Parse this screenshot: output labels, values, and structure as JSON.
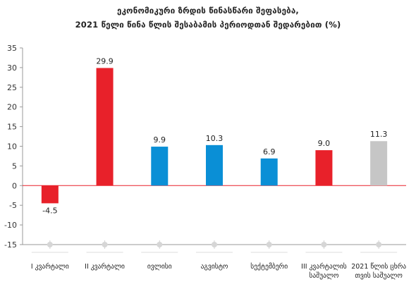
{
  "title_line1": "ეკონომიკური ზრდის წინასწარი შეფასება,",
  "title_line2": "2021 წელი წინა წლის შესაბამის პერიოდთან შედარებით (%)",
  "chart_data": {
    "type": "bar",
    "categories": [
      [
        "I კვარტალი"
      ],
      [
        "II კვარტალი"
      ],
      [
        "ივლისი"
      ],
      [
        "აგვისტო"
      ],
      [
        "სექტემბერი"
      ],
      [
        "III კვარტალის",
        "საშუალო"
      ],
      [
        "2021 წლის ცხრა",
        "თვის საშუალო"
      ]
    ],
    "values": [
      -4.5,
      29.9,
      9.9,
      10.3,
      6.9,
      9.0,
      11.3
    ],
    "value_labels": [
      "-4.5",
      "29.9",
      "9.9",
      "10.3",
      "6.9",
      "9.0",
      "11.3"
    ],
    "colors": [
      "#e8212a",
      "#e8212a",
      "#0a8fd6",
      "#0a8fd6",
      "#0a8fd6",
      "#e8212a",
      "#c6c6c6"
    ],
    "ylim": [
      -15,
      35
    ],
    "yticks": [
      -15,
      -10,
      -5,
      0,
      5,
      10,
      15,
      20,
      25,
      30,
      35
    ],
    "ytick_labels": [
      "-15",
      "-10",
      "-5",
      "0",
      "5",
      "10",
      "15",
      "20",
      "25",
      "30",
      "35"
    ],
    "zero_line_color": "#e8212a",
    "grid": false
  }
}
